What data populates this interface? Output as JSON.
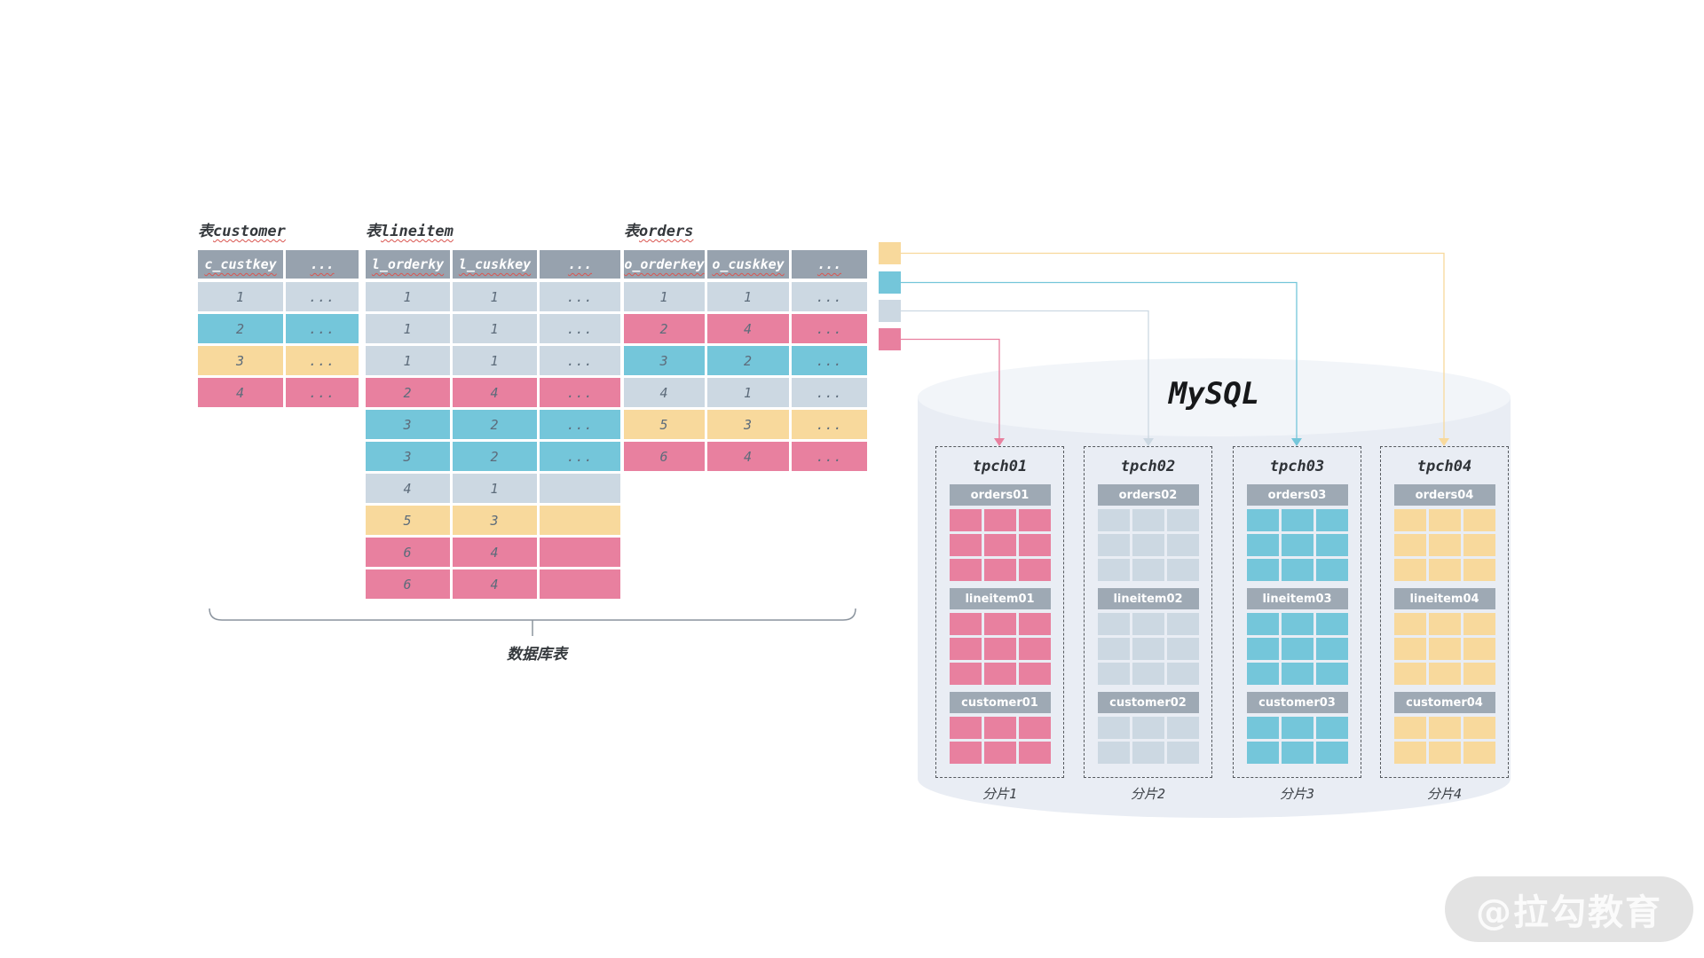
{
  "colors": {
    "row_gray": "#ccd8e2",
    "row_cyan": "#74c6da",
    "row_yellow": "#f8d99c",
    "row_pink": "#e8809f",
    "header_bg": "#97a2ae",
    "shard_header_bg": "#9ea9b4",
    "underline_red": "#d95550",
    "cylinder_body": "#e9edf4",
    "cylinder_top": "#f2f5f9",
    "cell_text": "#5d6c7b",
    "brace": "#8b949e"
  },
  "source_tables": [
    {
      "title_prefix": "表",
      "title_name": "customer",
      "columns": [
        "c_custkey",
        "..."
      ],
      "rows": [
        {
          "cells": [
            "1",
            "..."
          ],
          "color": "gray"
        },
        {
          "cells": [
            "2",
            "..."
          ],
          "color": "cyan"
        },
        {
          "cells": [
            "3",
            "..."
          ],
          "color": "yellow"
        },
        {
          "cells": [
            "4",
            "..."
          ],
          "color": "pink"
        }
      ]
    },
    {
      "title_prefix": "表",
      "title_name": "lineitem",
      "columns": [
        "l_orderky",
        "l_cuskkey",
        "..."
      ],
      "rows": [
        {
          "cells": [
            "1",
            "1",
            "..."
          ],
          "color": "gray"
        },
        {
          "cells": [
            "1",
            "1",
            "..."
          ],
          "color": "gray"
        },
        {
          "cells": [
            "1",
            "1",
            "..."
          ],
          "color": "gray"
        },
        {
          "cells": [
            "2",
            "4",
            "..."
          ],
          "color": "pink"
        },
        {
          "cells": [
            "3",
            "2",
            "..."
          ],
          "color": "cyan"
        },
        {
          "cells": [
            "3",
            "2",
            "..."
          ],
          "color": "cyan"
        },
        {
          "cells": [
            "4",
            "1",
            ""
          ],
          "color": "gray"
        },
        {
          "cells": [
            "5",
            "3",
            ""
          ],
          "color": "yellow"
        },
        {
          "cells": [
            "6",
            "4",
            ""
          ],
          "color": "pink"
        },
        {
          "cells": [
            "6",
            "4",
            ""
          ],
          "color": "pink"
        }
      ]
    },
    {
      "title_prefix": "表",
      "title_name": "orders",
      "columns": [
        "o_orderkey",
        "o_cuskkey",
        "..."
      ],
      "rows": [
        {
          "cells": [
            "1",
            "1",
            "..."
          ],
          "color": "gray"
        },
        {
          "cells": [
            "2",
            "4",
            "..."
          ],
          "color": "pink"
        },
        {
          "cells": [
            "3",
            "2",
            "..."
          ],
          "color": "cyan"
        },
        {
          "cells": [
            "4",
            "1",
            "..."
          ],
          "color": "gray"
        },
        {
          "cells": [
            "5",
            "3",
            "..."
          ],
          "color": "yellow"
        },
        {
          "cells": [
            "6",
            "4",
            "..."
          ],
          "color": "pink"
        }
      ]
    }
  ],
  "brace": {
    "label": "数据库表"
  },
  "legend": [
    {
      "color_key": "yellow",
      "target": "tpch04"
    },
    {
      "color_key": "cyan",
      "target": "tpch03"
    },
    {
      "color_key": "gray",
      "target": "tpch02"
    },
    {
      "color_key": "pink",
      "target": "tpch01"
    }
  ],
  "mysql": {
    "title": "MySQL",
    "shards": [
      {
        "name": "tpch01",
        "color_key": "pink",
        "label": "分片1",
        "tables": [
          {
            "name": "orders01",
            "rows": 3,
            "cols": 3
          },
          {
            "name": "lineitem01",
            "rows": 3,
            "cols": 3
          },
          {
            "name": "customer01",
            "rows": 2,
            "cols": 3
          }
        ]
      },
      {
        "name": "tpch02",
        "color_key": "gray",
        "label": "分片2",
        "tables": [
          {
            "name": "orders02",
            "rows": 3,
            "cols": 3
          },
          {
            "name": "lineitem02",
            "rows": 3,
            "cols": 3
          },
          {
            "name": "customer02",
            "rows": 2,
            "cols": 3
          }
        ]
      },
      {
        "name": "tpch03",
        "color_key": "cyan",
        "label": "分片3",
        "tables": [
          {
            "name": "orders03",
            "rows": 3,
            "cols": 3
          },
          {
            "name": "lineitem03",
            "rows": 3,
            "cols": 3
          },
          {
            "name": "customer03",
            "rows": 2,
            "cols": 3
          }
        ]
      },
      {
        "name": "tpch04",
        "color_key": "yellow",
        "label": "分片4",
        "tables": [
          {
            "name": "orders04",
            "rows": 3,
            "cols": 3
          },
          {
            "name": "lineitem04",
            "rows": 3,
            "cols": 3
          },
          {
            "name": "customer04",
            "rows": 2,
            "cols": 3
          }
        ]
      }
    ]
  },
  "watermark": {
    "text": "@拉勾教育"
  }
}
